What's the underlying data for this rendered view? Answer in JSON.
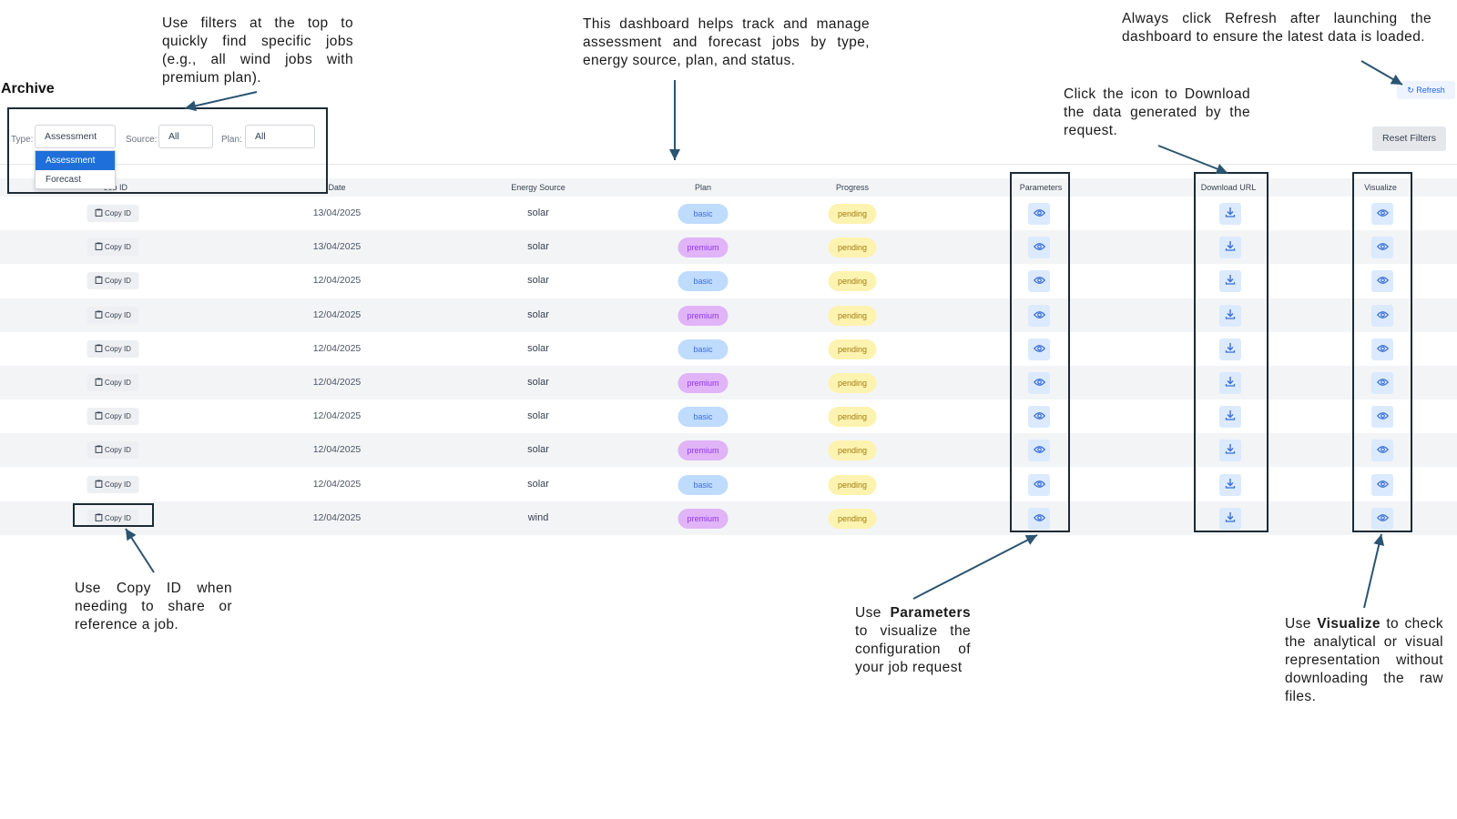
{
  "archive": {
    "title": "Archive",
    "filters": {
      "type_label": "Type:",
      "type_value": "Assessment",
      "type_options": [
        "Assessment",
        "Forecast"
      ],
      "source_label": "Source:",
      "source_value": "All",
      "plan_label": "Plan:",
      "plan_value": "All"
    },
    "refresh_label": "Refresh",
    "reset_label": "Reset Filters"
  },
  "table": {
    "columns": [
      "Job ID",
      "Date",
      "Energy Source",
      "Plan",
      "Progress",
      "Parameters",
      "Download URL",
      "Visualize"
    ],
    "copy_label": "Copy ID",
    "rows": [
      {
        "date": "13/04/2025",
        "source": "solar",
        "plan": "basic",
        "progress": "pending"
      },
      {
        "date": "13/04/2025",
        "source": "solar",
        "plan": "premium",
        "progress": "pending"
      },
      {
        "date": "12/04/2025",
        "source": "solar",
        "plan": "basic",
        "progress": "pending"
      },
      {
        "date": "12/04/2025",
        "source": "solar",
        "plan": "premium",
        "progress": "pending"
      },
      {
        "date": "12/04/2025",
        "source": "solar",
        "plan": "basic",
        "progress": "pending"
      },
      {
        "date": "12/04/2025",
        "source": "solar",
        "plan": "premium",
        "progress": "pending"
      },
      {
        "date": "12/04/2025",
        "source": "solar",
        "plan": "basic",
        "progress": "pending"
      },
      {
        "date": "12/04/2025",
        "source": "solar",
        "plan": "premium",
        "progress": "pending"
      },
      {
        "date": "12/04/2025",
        "source": "solar",
        "plan": "basic",
        "progress": "pending"
      },
      {
        "date": "12/04/2025",
        "source": "wind",
        "plan": "premium",
        "progress": "pending"
      }
    ]
  },
  "annotations": {
    "filters_note": "Use filters at the top to quickly find specific jobs (e.g., all wind jobs with premium plan).",
    "dashboard_note": "This dashboard helps track and manage assessment and forecast jobs by type, energy source, plan, and status.",
    "refresh_note": "Always click Refresh after launching the dashboard to ensure the latest data is loaded.",
    "download_note": "Click the icon to Download the data generated by the request.",
    "copy_note": "Use Copy ID when needing to share or reference a job.",
    "parameters_note_prefix": "Use ",
    "parameters_note_bold": "Parameters",
    "parameters_note_suffix": " to visualize the configuration of your job request",
    "visualize_note_prefix": "Use ",
    "visualize_note_bold": "Visualize",
    "visualize_note_suffix": " to check the analytical or visual representation without downloading the raw files."
  },
  "colors": {
    "accent": "#2563eb",
    "annotation_box": "#1c2b36",
    "arrow": "#2a5470"
  },
  "icons": {
    "parameters": "eye-icon",
    "download": "download-icon",
    "visualize": "eye-icon",
    "copy": "clipboard-icon",
    "refresh": "refresh-icon"
  }
}
